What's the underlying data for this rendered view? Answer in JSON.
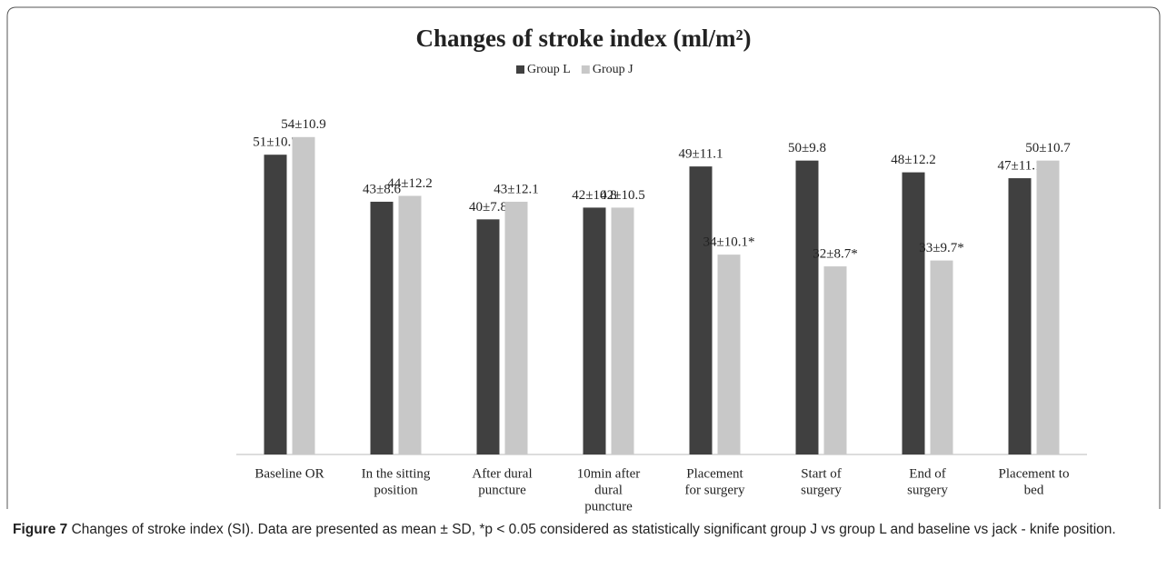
{
  "chart_data": {
    "type": "bar",
    "title": "Changes of stroke index (ml/m²)",
    "categories": [
      [
        "Baseline OR"
      ],
      [
        "In the sitting",
        "position"
      ],
      [
        "After dural",
        "puncture"
      ],
      [
        "10min after",
        "dural",
        "puncture"
      ],
      [
        "Placement",
        "for surgery"
      ],
      [
        "Start of",
        "surgery"
      ],
      [
        "End of",
        "surgery"
      ],
      [
        "Placement to",
        "bed"
      ]
    ],
    "series": [
      {
        "name": "Group L",
        "color": "#404040",
        "values": [
          51,
          43,
          40,
          42,
          49,
          50,
          48,
          47
        ],
        "value_labels": [
          "51±10.7",
          "43±8.6",
          "40±7.8",
          "42±10.8",
          "49±11.1",
          "50±9.8",
          "48±12.2",
          "47±11.1"
        ]
      },
      {
        "name": "Group J",
        "color": "#c8c8c8",
        "values": [
          54,
          44,
          43,
          42,
          34,
          32,
          33,
          50
        ],
        "value_labels": [
          "54±10.9",
          "44±12.2",
          "43±12.1",
          "42±10.5",
          "34±10.1*",
          "32±8.7*",
          "33±9.7*",
          "50±10.7"
        ]
      }
    ],
    "ylim": [
      0,
      60
    ],
    "legend": "top"
  },
  "caption": {
    "label": "Figure 7",
    "text": "Changes of stroke index (SI). Data are presented as mean ± SD, *p < 0.05 considered as statistically significant group J vs group L and baseline vs jack - knife position."
  }
}
